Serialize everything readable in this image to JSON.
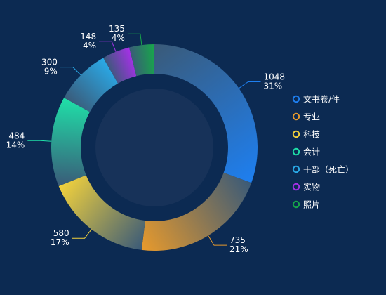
{
  "chart_data": {
    "type": "pie",
    "variant": "donut",
    "title": "",
    "categories": [
      "文书卷/件",
      "专业",
      "科技",
      "会计",
      "干部（死亡）",
      "实物",
      "照片"
    ],
    "values": [
      1048,
      735,
      580,
      484,
      300,
      148,
      135
    ],
    "percent_labels": [
      "31%",
      "21%",
      "17%",
      "14%",
      "9%",
      "4%",
      "4%"
    ],
    "value_labels": [
      "1048",
      "735",
      "580",
      "484",
      "300",
      "148",
      "135"
    ],
    "colors": [
      "#1e7ff0",
      "#e89a2c",
      "#f3d23c",
      "#1fe0a8",
      "#2aaae8",
      "#a630e8",
      "#17a84a"
    ],
    "start_angle_deg": 90,
    "direction": "clockwise",
    "legend": {
      "position": "right"
    }
  }
}
